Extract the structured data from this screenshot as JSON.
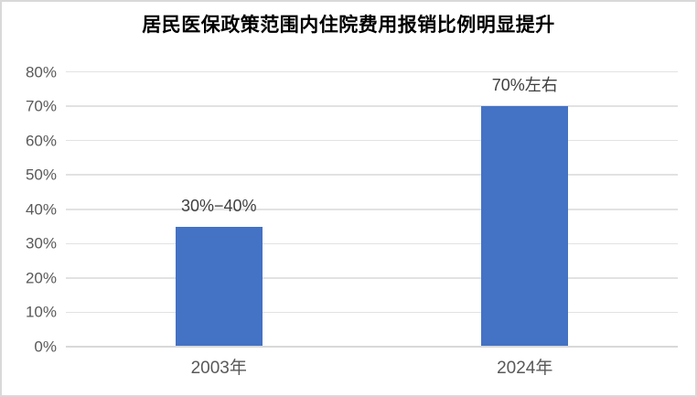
{
  "chart_data": {
    "type": "bar",
    "title": "居民医保政策范围内住院费用报销比例明显提升",
    "categories": [
      "2003年",
      "2024年"
    ],
    "values": [
      35,
      70
    ],
    "data_labels": [
      "30%−40%",
      "70%左右"
    ],
    "ylim": [
      0,
      80
    ],
    "ytick_step": 10,
    "ytick_labels": [
      "0%",
      "10%",
      "20%",
      "30%",
      "40%",
      "50%",
      "60%",
      "70%",
      "80%"
    ],
    "xlabel": "",
    "ylabel": "",
    "grid": true,
    "legend": "none",
    "colors": {
      "bar": "#4472c4",
      "gridline": "#e2e2e2",
      "axis_line": "#d9d9d9",
      "tick_text": "#595959",
      "data_label_text": "#3f3f3f",
      "title_text": "#000000",
      "frame_border": "#d9d9d9"
    }
  }
}
